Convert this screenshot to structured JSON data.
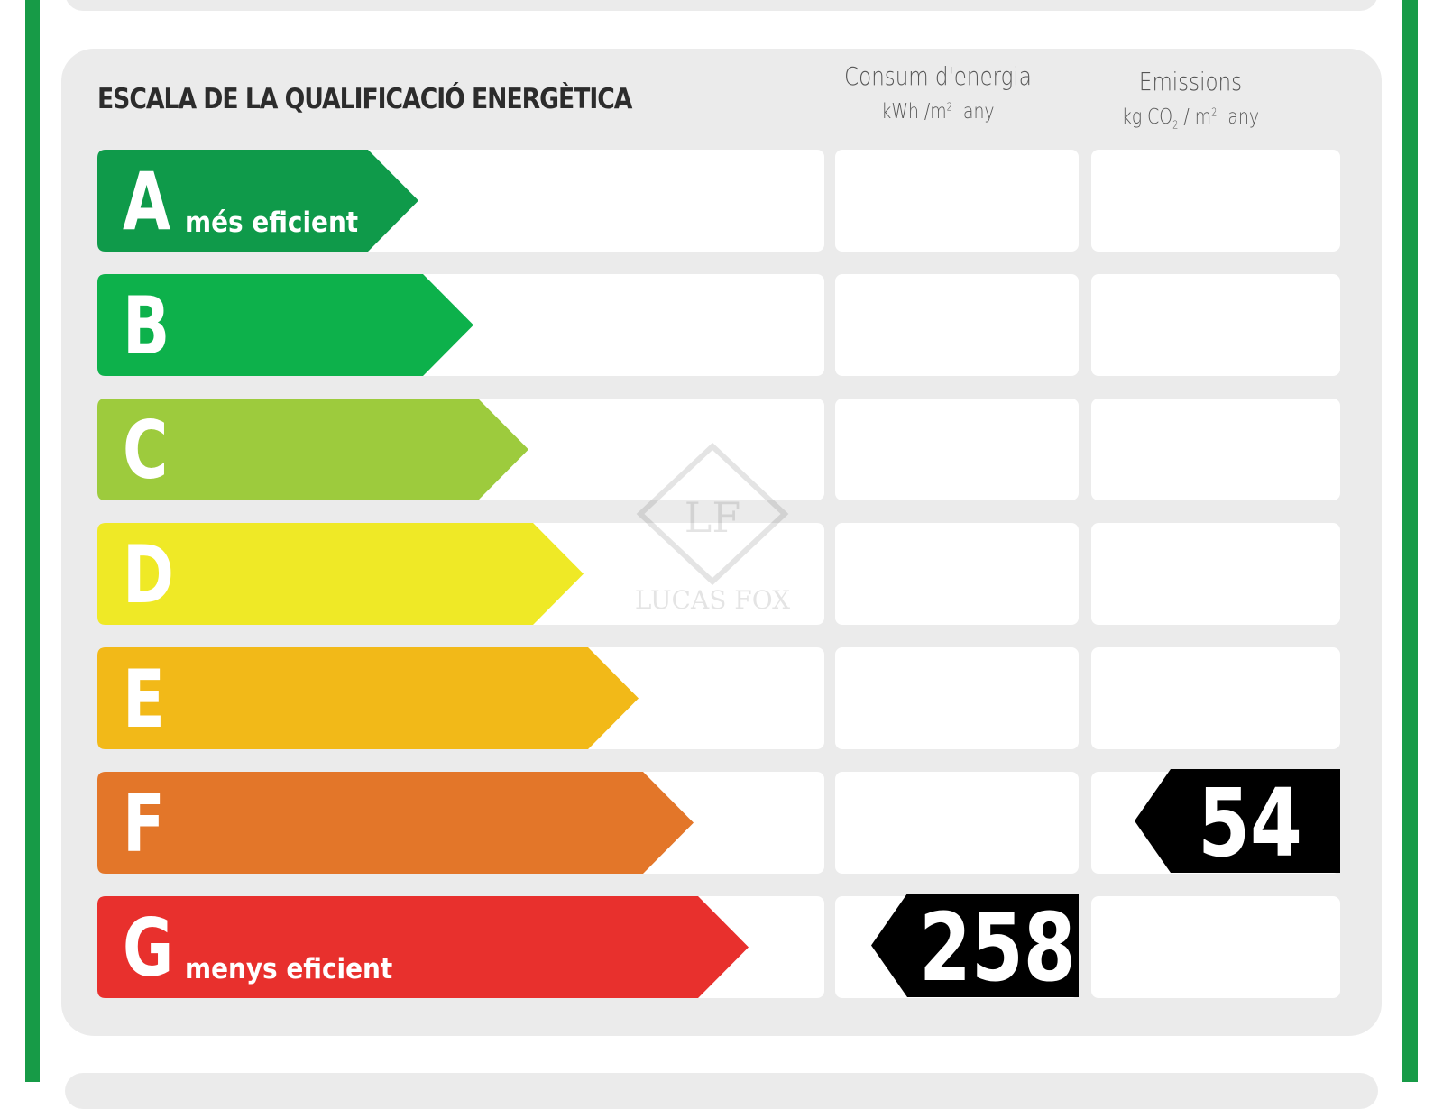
{
  "title": "ESCALA DE LA QUALIFICACIÓ ENERGÈTICA",
  "columns": {
    "energy": {
      "label": "Consum d'energia",
      "unit_pre": "kWh /m",
      "unit_exp": "2",
      "unit_post": "any"
    },
    "emissions": {
      "label": "Emissions",
      "unit_pre": "kg CO",
      "unit_sub": "2",
      "unit_mid": " / m",
      "unit_exp": "2",
      "unit_post": "any"
    }
  },
  "ratings": [
    {
      "letter": "A",
      "subtitle": "més eficient",
      "color": "#0f9a4a"
    },
    {
      "letter": "B",
      "subtitle": "",
      "color": "#0db14b"
    },
    {
      "letter": "C",
      "subtitle": "",
      "color": "#9dcb3d"
    },
    {
      "letter": "D",
      "subtitle": "",
      "color": "#efe926"
    },
    {
      "letter": "E",
      "subtitle": "",
      "color": "#f2b918"
    },
    {
      "letter": "F",
      "subtitle": "",
      "color": "#e37629"
    },
    {
      "letter": "G",
      "subtitle": "menys eficient",
      "color": "#e8302d"
    }
  ],
  "energy_value": {
    "value": "258",
    "rating": "G"
  },
  "emissions_value": {
    "value": "54",
    "rating": "F"
  },
  "watermark": {
    "brand": "LUCAS FOX",
    "monogram": "LF"
  },
  "frame_color": "#179b47"
}
